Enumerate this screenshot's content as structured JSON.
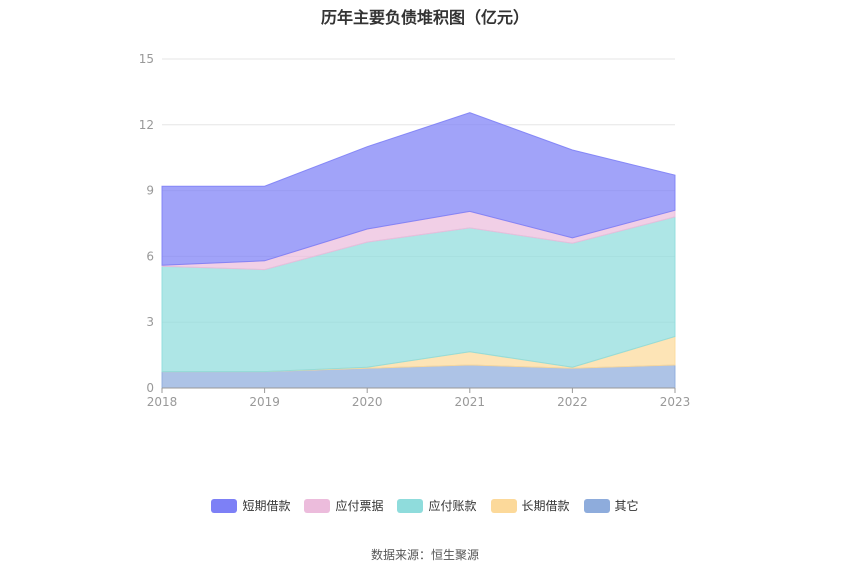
{
  "title": "历年主要负债堆积图（亿元）",
  "source": "数据来源：恒生聚源",
  "chart_data": {
    "type": "area",
    "stacked": true,
    "x": [
      "2018",
      "2019",
      "2020",
      "2021",
      "2022",
      "2023"
    ],
    "yticks": [
      "0",
      "3",
      "6",
      "9",
      "12",
      "15"
    ],
    "ylim": [
      0,
      15
    ],
    "grid": true,
    "legend_position": "bottom",
    "series": [
      {
        "name": "其它",
        "color": "#8eacdc",
        "values": [
          0.75,
          0.75,
          0.9,
          1.05,
          0.9,
          1.05
        ]
      },
      {
        "name": "长期借款",
        "color": "#fcd99a",
        "values": [
          0,
          0,
          0.05,
          0.6,
          0.05,
          1.3
        ]
      },
      {
        "name": "应付账款",
        "color": "#8fdcdc",
        "values": [
          4.8,
          4.65,
          5.7,
          5.65,
          5.65,
          5.45
        ]
      },
      {
        "name": "应付票据",
        "color": "#ecbcdc",
        "values": [
          0.05,
          0.4,
          0.6,
          0.75,
          0.25,
          0.3
        ]
      },
      {
        "name": "短期借款",
        "color": "#7d80f6",
        "values": [
          3.6,
          3.4,
          3.75,
          4.5,
          4.0,
          1.6
        ]
      }
    ],
    "legend": [
      {
        "name": "短期借款",
        "color": "#7d80f6"
      },
      {
        "name": "应付票据",
        "color": "#ecbcdc"
      },
      {
        "name": "应付账款",
        "color": "#8fdcdc"
      },
      {
        "name": "长期借款",
        "color": "#fcd99a"
      },
      {
        "name": "其它",
        "color": "#8eacdc"
      }
    ]
  }
}
